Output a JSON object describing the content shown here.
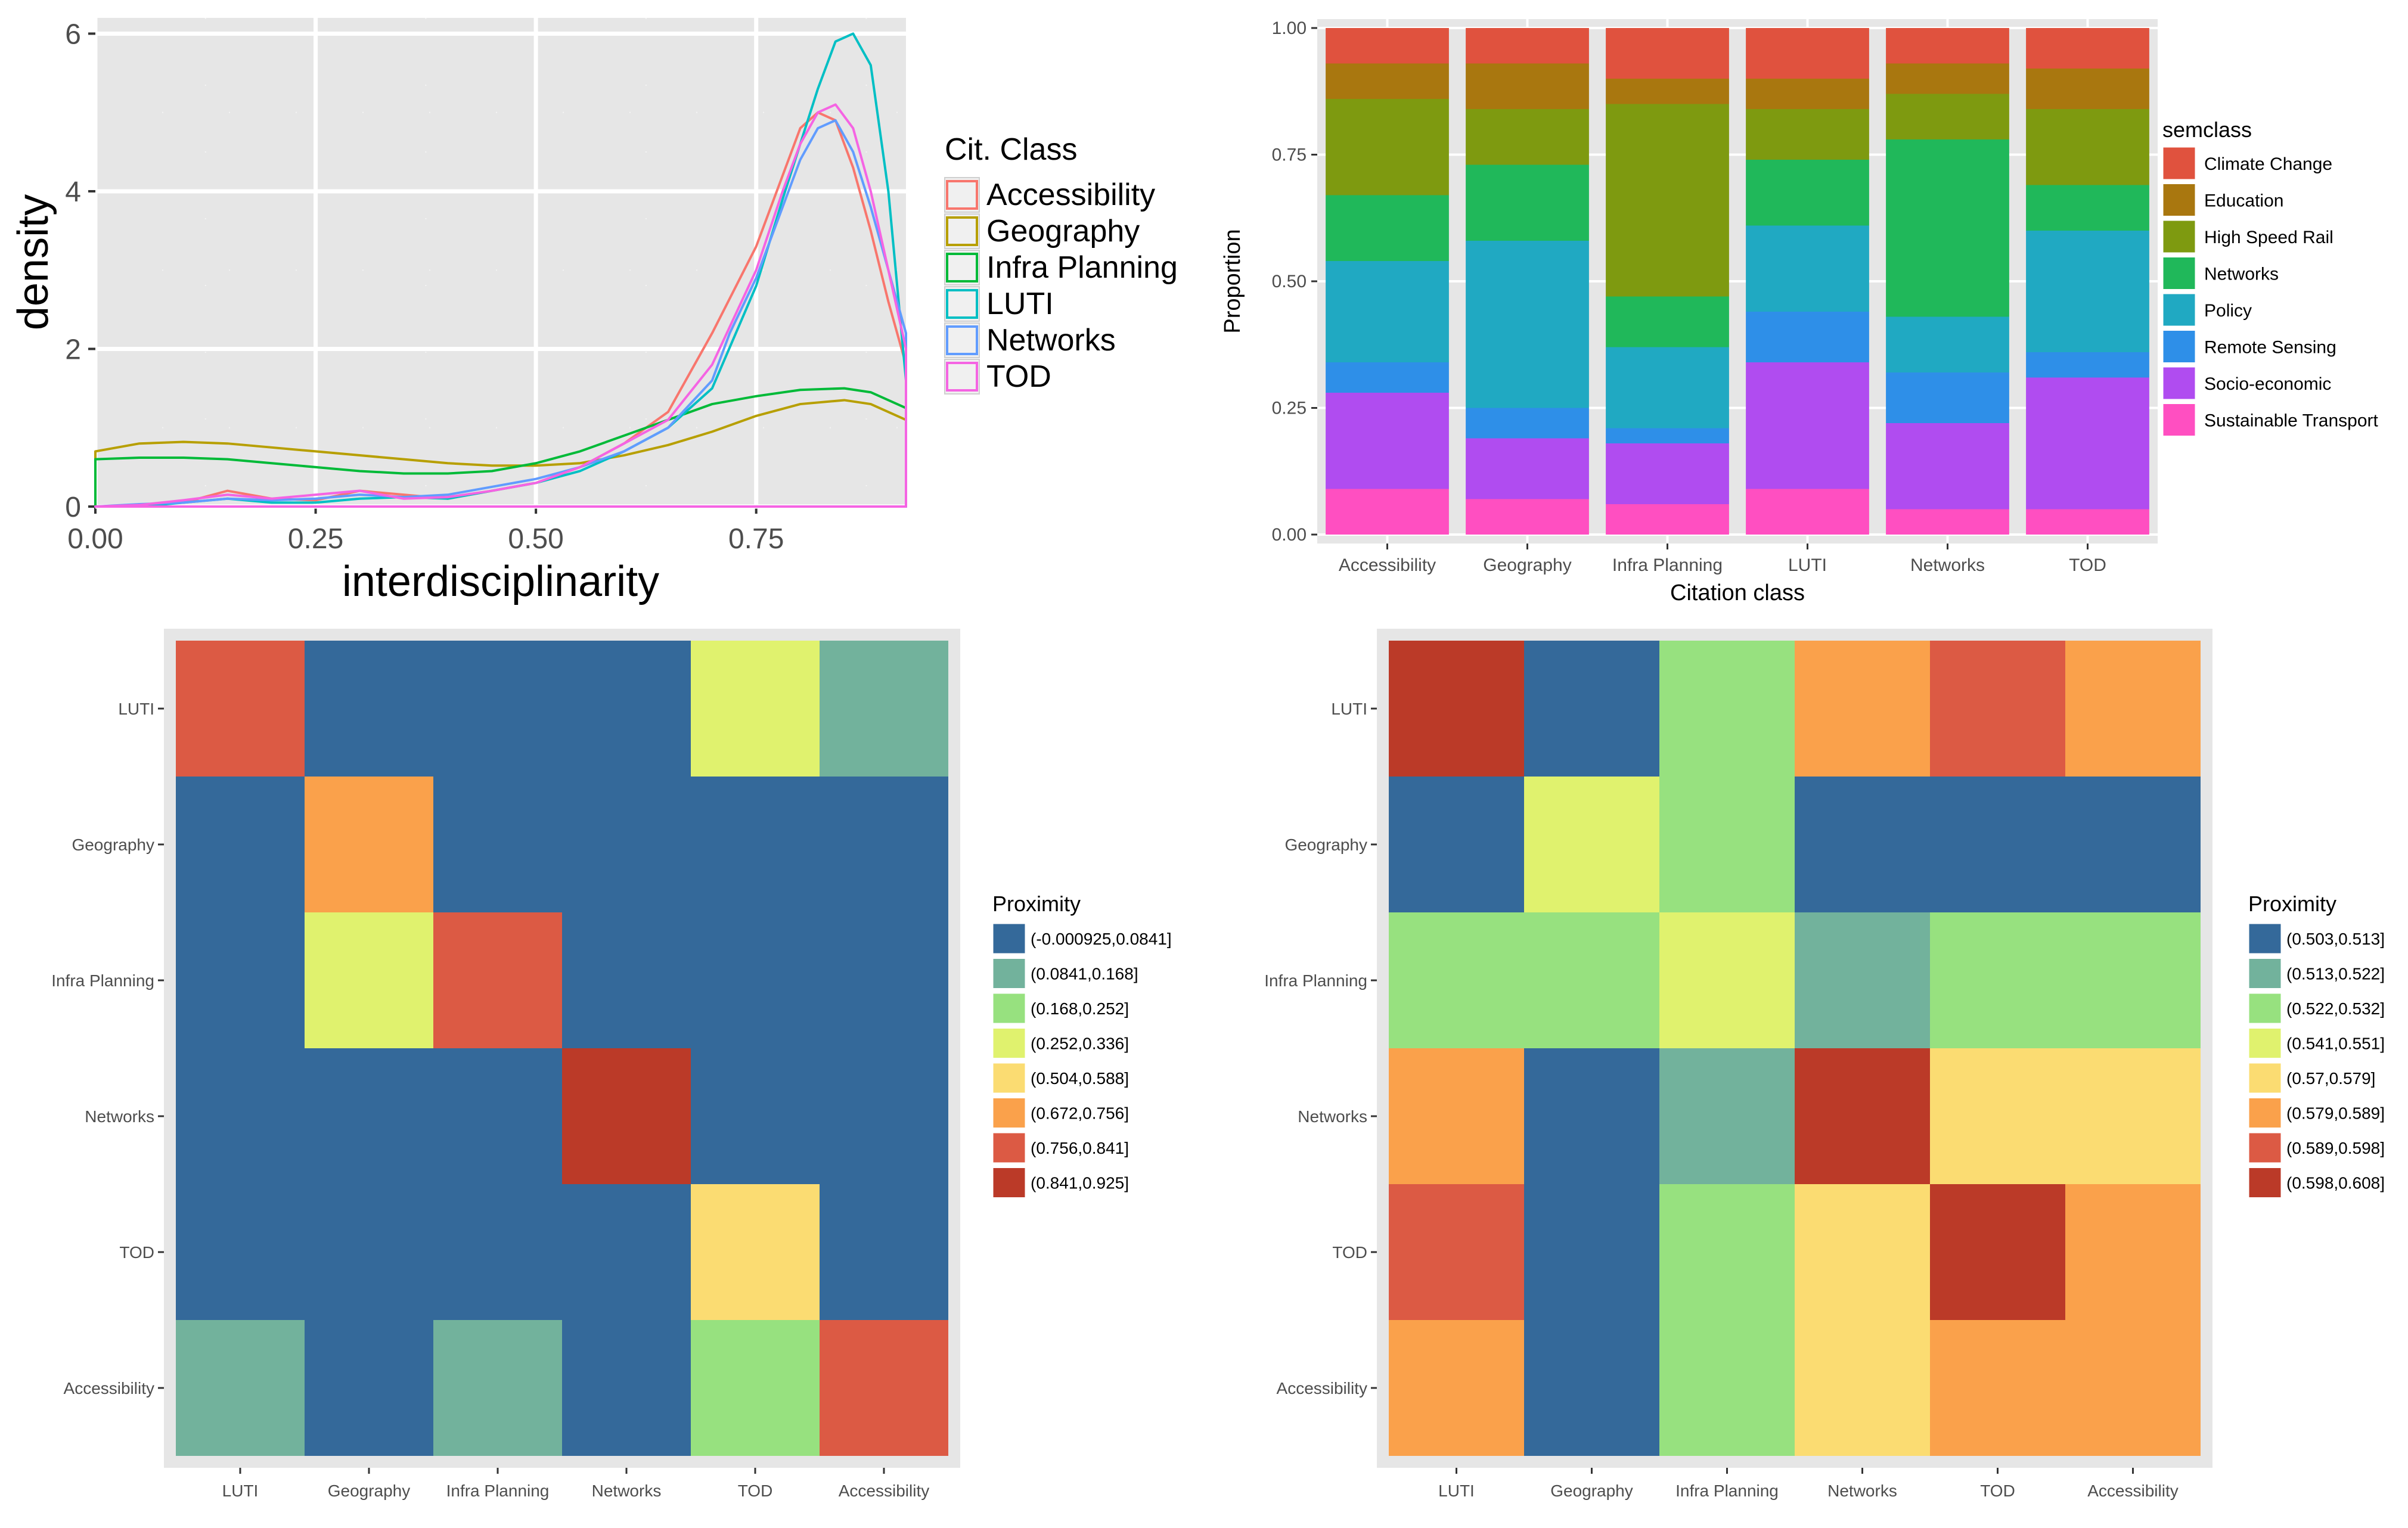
{
  "chart_data": [
    {
      "type": "line",
      "subtype": "density",
      "xlabel": "interdisciplinarity",
      "ylabel": "density",
      "xlim": [
        0,
        0.92
      ],
      "ylim": [
        0,
        6.2
      ],
      "xticks": [
        "0.00",
        "0.25",
        "0.50",
        "0.75"
      ],
      "yticks": [
        "0",
        "2",
        "4",
        "6"
      ],
      "grid": true,
      "legend": {
        "title": "Cit. Class",
        "position": "right"
      },
      "series": [
        {
          "name": "Accessibility",
          "color": "#F8766D",
          "points": [
            [
              0.0,
              0.0
            ],
            [
              0.05,
              0.02
            ],
            [
              0.1,
              0.05
            ],
            [
              0.15,
              0.2
            ],
            [
              0.2,
              0.1
            ],
            [
              0.25,
              0.08
            ],
            [
              0.3,
              0.2
            ],
            [
              0.35,
              0.15
            ],
            [
              0.4,
              0.1
            ],
            [
              0.45,
              0.2
            ],
            [
              0.5,
              0.3
            ],
            [
              0.55,
              0.5
            ],
            [
              0.6,
              0.8
            ],
            [
              0.65,
              1.2
            ],
            [
              0.7,
              2.2
            ],
            [
              0.75,
              3.3
            ],
            [
              0.78,
              4.2
            ],
            [
              0.8,
              4.8
            ],
            [
              0.82,
              5.0
            ],
            [
              0.84,
              4.9
            ],
            [
              0.86,
              4.3
            ],
            [
              0.88,
              3.5
            ],
            [
              0.9,
              2.6
            ],
            [
              0.92,
              1.8
            ]
          ]
        },
        {
          "name": "Geography",
          "color": "#B79F00",
          "points": [
            [
              0.0,
              0.7
            ],
            [
              0.05,
              0.8
            ],
            [
              0.1,
              0.82
            ],
            [
              0.15,
              0.8
            ],
            [
              0.2,
              0.75
            ],
            [
              0.25,
              0.7
            ],
            [
              0.3,
              0.65
            ],
            [
              0.35,
              0.6
            ],
            [
              0.4,
              0.55
            ],
            [
              0.45,
              0.52
            ],
            [
              0.5,
              0.52
            ],
            [
              0.55,
              0.55
            ],
            [
              0.6,
              0.65
            ],
            [
              0.65,
              0.78
            ],
            [
              0.7,
              0.95
            ],
            [
              0.75,
              1.15
            ],
            [
              0.8,
              1.3
            ],
            [
              0.85,
              1.35
            ],
            [
              0.88,
              1.3
            ],
            [
              0.92,
              1.1
            ]
          ]
        },
        {
          "name": "Infra Planning",
          "color": "#00BA38",
          "points": [
            [
              0.0,
              0.6
            ],
            [
              0.05,
              0.62
            ],
            [
              0.1,
              0.62
            ],
            [
              0.15,
              0.6
            ],
            [
              0.2,
              0.55
            ],
            [
              0.25,
              0.5
            ],
            [
              0.3,
              0.45
            ],
            [
              0.35,
              0.42
            ],
            [
              0.4,
              0.42
            ],
            [
              0.45,
              0.45
            ],
            [
              0.5,
              0.55
            ],
            [
              0.55,
              0.7
            ],
            [
              0.6,
              0.9
            ],
            [
              0.65,
              1.1
            ],
            [
              0.7,
              1.3
            ],
            [
              0.75,
              1.4
            ],
            [
              0.8,
              1.48
            ],
            [
              0.85,
              1.5
            ],
            [
              0.88,
              1.45
            ],
            [
              0.92,
              1.25
            ]
          ]
        },
        {
          "name": "LUTI",
          "color": "#00BFC4",
          "points": [
            [
              0.0,
              0.0
            ],
            [
              0.05,
              0.0
            ],
            [
              0.1,
              0.05
            ],
            [
              0.15,
              0.1
            ],
            [
              0.2,
              0.05
            ],
            [
              0.25,
              0.05
            ],
            [
              0.3,
              0.1
            ],
            [
              0.35,
              0.12
            ],
            [
              0.4,
              0.1
            ],
            [
              0.45,
              0.2
            ],
            [
              0.5,
              0.3
            ],
            [
              0.55,
              0.45
            ],
            [
              0.6,
              0.7
            ],
            [
              0.65,
              1.0
            ],
            [
              0.7,
              1.5
            ],
            [
              0.75,
              2.8
            ],
            [
              0.78,
              3.9
            ],
            [
              0.8,
              4.6
            ],
            [
              0.82,
              5.3
            ],
            [
              0.84,
              5.9
            ],
            [
              0.86,
              6.0
            ],
            [
              0.88,
              5.6
            ],
            [
              0.9,
              4.0
            ],
            [
              0.92,
              1.6
            ]
          ]
        },
        {
          "name": "Networks",
          "color": "#619CFF",
          "points": [
            [
              0.0,
              0.0
            ],
            [
              0.05,
              0.03
            ],
            [
              0.1,
              0.05
            ],
            [
              0.15,
              0.1
            ],
            [
              0.2,
              0.08
            ],
            [
              0.25,
              0.1
            ],
            [
              0.3,
              0.15
            ],
            [
              0.35,
              0.12
            ],
            [
              0.4,
              0.15
            ],
            [
              0.45,
              0.25
            ],
            [
              0.5,
              0.35
            ],
            [
              0.55,
              0.5
            ],
            [
              0.6,
              0.7
            ],
            [
              0.65,
              1.0
            ],
            [
              0.7,
              1.6
            ],
            [
              0.72,
              2.2
            ],
            [
              0.75,
              2.9
            ],
            [
              0.78,
              3.8
            ],
            [
              0.8,
              4.4
            ],
            [
              0.82,
              4.8
            ],
            [
              0.84,
              4.9
            ],
            [
              0.86,
              4.5
            ],
            [
              0.88,
              3.8
            ],
            [
              0.9,
              3.0
            ],
            [
              0.92,
              2.2
            ]
          ]
        },
        {
          "name": "TOD",
          "color": "#F564E3",
          "points": [
            [
              0.0,
              0.0
            ],
            [
              0.05,
              0.02
            ],
            [
              0.1,
              0.08
            ],
            [
              0.15,
              0.15
            ],
            [
              0.2,
              0.1
            ],
            [
              0.25,
              0.15
            ],
            [
              0.3,
              0.2
            ],
            [
              0.35,
              0.1
            ],
            [
              0.4,
              0.12
            ],
            [
              0.45,
              0.2
            ],
            [
              0.5,
              0.3
            ],
            [
              0.55,
              0.5
            ],
            [
              0.6,
              0.8
            ],
            [
              0.65,
              1.1
            ],
            [
              0.7,
              1.8
            ],
            [
              0.75,
              3.0
            ],
            [
              0.78,
              4.0
            ],
            [
              0.8,
              4.6
            ],
            [
              0.82,
              5.0
            ],
            [
              0.84,
              5.1
            ],
            [
              0.86,
              4.8
            ],
            [
              0.88,
              4.0
            ],
            [
              0.9,
              3.0
            ],
            [
              0.92,
              2.0
            ]
          ]
        }
      ]
    },
    {
      "type": "bar",
      "subtype": "stacked-proportion",
      "xlabel": "Citation class",
      "ylabel": "Proportion",
      "ylim": [
        0,
        1
      ],
      "yticks": [
        "0.00",
        "0.25",
        "0.50",
        "0.75",
        "1.00"
      ],
      "categories": [
        "Accessibility",
        "Geography",
        "Infra Planning",
        "LUTI",
        "Networks",
        "TOD"
      ],
      "legend": {
        "title": "semclass",
        "position": "right"
      },
      "series": [
        {
          "name": "Sustainable Transport",
          "color": "#FF4FC1",
          "values": [
            0.09,
            0.07,
            0.06,
            0.09,
            0.05,
            0.05
          ]
        },
        {
          "name": "Socio-economic",
          "color": "#B04CF0",
          "values": [
            0.19,
            0.12,
            0.12,
            0.25,
            0.17,
            0.26
          ]
        },
        {
          "name": "Remote Sensing",
          "color": "#2E8FE8",
          "values": [
            0.06,
            0.06,
            0.03,
            0.1,
            0.1,
            0.05
          ]
        },
        {
          "name": "Policy",
          "color": "#20A9C2",
          "values": [
            0.2,
            0.33,
            0.16,
            0.17,
            0.11,
            0.24
          ]
        },
        {
          "name": "Networks",
          "color": "#20B85A",
          "values": [
            0.13,
            0.15,
            0.1,
            0.13,
            0.35,
            0.09
          ]
        },
        {
          "name": "High Speed Rail",
          "color": "#7E9A10",
          "values": [
            0.19,
            0.11,
            0.38,
            0.1,
            0.09,
            0.15
          ]
        },
        {
          "name": "Education",
          "color": "#A9770F",
          "values": [
            0.07,
            0.09,
            0.05,
            0.06,
            0.06,
            0.08
          ]
        },
        {
          "name": "Climate Change",
          "color": "#E0523E",
          "values": [
            0.07,
            0.07,
            0.1,
            0.1,
            0.07,
            0.08
          ]
        }
      ]
    },
    {
      "type": "heatmap",
      "rows": [
        "LUTI",
        "Geography",
        "Infra Planning",
        "Networks",
        "TOD",
        "Accessibility"
      ],
      "columns": [
        "LUTI",
        "Geography",
        "Infra Planning",
        "Networks",
        "TOD",
        "Accessibility"
      ],
      "legend": {
        "title": "Proximity",
        "position": "right",
        "bins": [
          "(-0.000925,0.0841]",
          "(0.0841,0.168]",
          "(0.168,0.252]",
          "(0.252,0.336]",
          "(0.504,0.588]",
          "(0.672,0.756]",
          "(0.756,0.841]",
          "(0.841,0.925]"
        ],
        "colors": [
          "#34699A",
          "#72B29C",
          "#97E17F",
          "#E0F26E",
          "#FBDC72",
          "#FAA14B",
          "#DC5A44",
          "#BB3A28"
        ]
      },
      "cells": [
        [
          6,
          0,
          0,
          0,
          3,
          1
        ],
        [
          0,
          5,
          0,
          0,
          0,
          0
        ],
        [
          0,
          3,
          6,
          0,
          0,
          0
        ],
        [
          0,
          0,
          0,
          7,
          0,
          0
        ],
        [
          0,
          0,
          0,
          0,
          4,
          0
        ],
        [
          1,
          0,
          1,
          0,
          2,
          6
        ]
      ]
    },
    {
      "type": "heatmap",
      "rows": [
        "LUTI",
        "Geography",
        "Infra Planning",
        "Networks",
        "TOD",
        "Accessibility"
      ],
      "columns": [
        "LUTI",
        "Geography",
        "Infra Planning",
        "Networks",
        "TOD",
        "Accessibility"
      ],
      "legend": {
        "title": "Proximity",
        "position": "right",
        "bins": [
          "(0.503,0.513]",
          "(0.513,0.522]",
          "(0.522,0.532]",
          "(0.541,0.551]",
          "(0.57,0.579]",
          "(0.579,0.589]",
          "(0.589,0.598]",
          "(0.598,0.608]"
        ],
        "colors": [
          "#34699A",
          "#72B29C",
          "#97E17F",
          "#E0F26E",
          "#FBDC72",
          "#FAA14B",
          "#DC5A44",
          "#BB3A28"
        ]
      },
      "cells": [
        [
          7,
          0,
          2,
          5,
          6,
          5
        ],
        [
          0,
          3,
          2,
          0,
          0,
          0
        ],
        [
          2,
          2,
          3,
          1,
          2,
          2
        ],
        [
          5,
          0,
          1,
          7,
          4,
          4
        ],
        [
          6,
          0,
          2,
          4,
          7,
          5
        ],
        [
          5,
          0,
          2,
          4,
          5,
          5
        ]
      ]
    }
  ]
}
